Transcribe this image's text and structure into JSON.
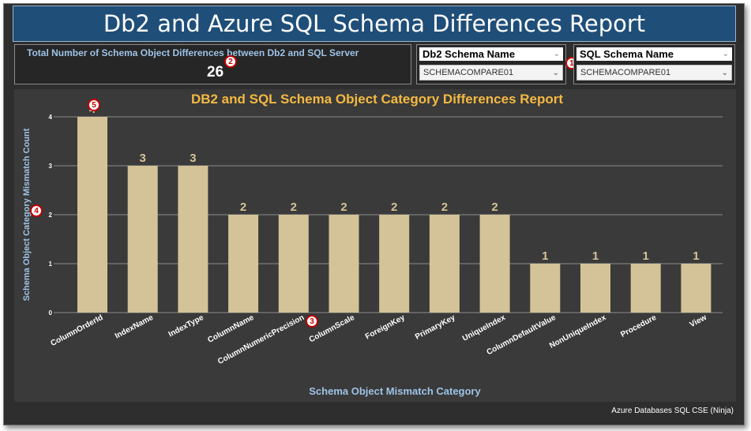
{
  "header": {
    "title": "Db2 and Azure SQL Schema Differences Report"
  },
  "kpi": {
    "label": "Total  Number of Schema Object Differences between Db2 and SQL Server",
    "value": "26"
  },
  "slicers": [
    {
      "header": "Db2 Schema Name",
      "selected": "SCHEMACOMPARE01"
    },
    {
      "header": "SQL Schema Name",
      "selected": "SCHEMACOMPARE01"
    }
  ],
  "badges": [
    "1",
    "2",
    "3",
    "4",
    "5"
  ],
  "footer": {
    "text": "Azure Databases SQL CSE (Ninja)"
  },
  "colors": {
    "bar": "#d4c398",
    "title": "#f4b942",
    "axis_title": "#9dc3e6",
    "header_bg": "#1f4e79"
  },
  "chart_data": {
    "type": "bar",
    "title": "DB2 and SQL Schema Object Category Differences Report",
    "xlabel": "Schema Object Mismatch Category",
    "ylabel": "Schema Object Category Mismatch Count",
    "categories": [
      "ColumnOrderId",
      "IndexName",
      "IndexType",
      "ColumnName",
      "ColumnNumericPrecision",
      "ColumnScale",
      "ForeignKey",
      "PrimaryKey",
      "UniqueIndex",
      "ColumnDefaultValue",
      "NonUniqueIndex",
      "Procedure",
      "View"
    ],
    "values": [
      4,
      3,
      3,
      2,
      2,
      2,
      2,
      2,
      2,
      1,
      1,
      1,
      1
    ],
    "data_labels": [
      "4",
      "3",
      "3",
      "2",
      "2",
      "2",
      "2",
      "2",
      "2",
      "1",
      "1",
      "1",
      "1"
    ],
    "yticks": [
      "0",
      "1",
      "2",
      "3",
      "4"
    ],
    "ylim": [
      0,
      4
    ],
    "grid": true,
    "legend": "none"
  }
}
